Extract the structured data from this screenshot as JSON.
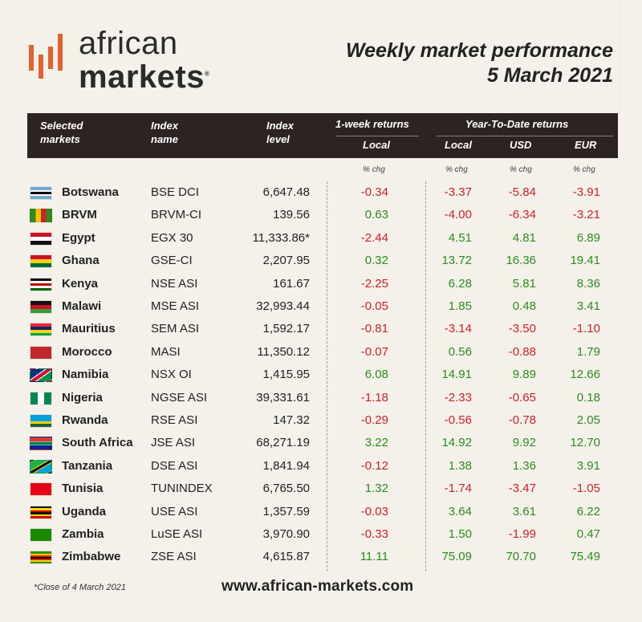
{
  "logo": {
    "line1": "african",
    "line2": "markets",
    "reg": "®"
  },
  "header": {
    "title": "Weekly market performance",
    "date": "5 March 2021"
  },
  "columns": {
    "markets": "Selected markets",
    "index_name": "Index name",
    "index_level": "Index level",
    "week_group": "1-week returns",
    "ytd_group": "Year-To-Date returns",
    "local": "Local",
    "ytd_local": "Local",
    "usd": "USD",
    "eur": "EUR",
    "pct_chg": "% chg"
  },
  "colors": {
    "header_bg": "#2c2322",
    "positive": "#2e8b1f",
    "negative": "#d0202b",
    "logo_orange": "#e2622e",
    "background": "#f3f1e9"
  },
  "chart_data": {
    "type": "table",
    "title": "Weekly market performance",
    "subtitle": "5 March 2021",
    "rows": [
      {
        "country": "Botswana",
        "flag": "botswana-flag",
        "index": "BSE DCI",
        "level": "6,647.48",
        "week_local": "-0.34",
        "ytd_local": "-3.37",
        "ytd_usd": "-5.84",
        "ytd_eur": "-3.91"
      },
      {
        "country": "BRVM",
        "flag": "brvm-flag",
        "index": "BRVM-CI",
        "level": "139.56",
        "week_local": "0.63",
        "ytd_local": "-4.00",
        "ytd_usd": "-6.34",
        "ytd_eur": "-3.21"
      },
      {
        "country": "Egypt",
        "flag": "egypt-flag",
        "index": "EGX 30",
        "level": "11,333.86*",
        "week_local": "-2.44",
        "ytd_local": "4.51",
        "ytd_usd": "4.81",
        "ytd_eur": "6.89"
      },
      {
        "country": "Ghana",
        "flag": "ghana-flag",
        "index": "GSE-CI",
        "level": "2,207.95",
        "week_local": "0.32",
        "ytd_local": "13.72",
        "ytd_usd": "16.36",
        "ytd_eur": "19.41"
      },
      {
        "country": "Kenya",
        "flag": "kenya-flag",
        "index": "NSE ASI",
        "level": "161.67",
        "week_local": "-2.25",
        "ytd_local": "6.28",
        "ytd_usd": "5.81",
        "ytd_eur": "8.36"
      },
      {
        "country": "Malawi",
        "flag": "malawi-flag",
        "index": "MSE ASI",
        "level": "32,993.44",
        "week_local": "-0.05",
        "ytd_local": "1.85",
        "ytd_usd": "0.48",
        "ytd_eur": "3.41"
      },
      {
        "country": "Mauritius",
        "flag": "mauritius-flag",
        "index": "SEM ASI",
        "level": "1,592.17",
        "week_local": "-0.81",
        "ytd_local": "-3.14",
        "ytd_usd": "-3.50",
        "ytd_eur": "-1.10"
      },
      {
        "country": "Morocco",
        "flag": "morocco-flag",
        "index": "MASI",
        "level": "11,350.12",
        "week_local": "-0.07",
        "ytd_local": "0.56",
        "ytd_usd": "-0.88",
        "ytd_eur": "1.79"
      },
      {
        "country": "Namibia",
        "flag": "namibia-flag",
        "index": "NSX OI",
        "level": "1,415.95",
        "week_local": "6.08",
        "ytd_local": "14.91",
        "ytd_usd": "9.89",
        "ytd_eur": "12.66"
      },
      {
        "country": "Nigeria",
        "flag": "nigeria-flag",
        "index": "NGSE ASI",
        "level": "39,331.61",
        "week_local": "-1.18",
        "ytd_local": "-2.33",
        "ytd_usd": "-0.65",
        "ytd_eur": "0.18"
      },
      {
        "country": "Rwanda",
        "flag": "rwanda-flag",
        "index": "RSE ASI",
        "level": "147.32",
        "week_local": "-0.29",
        "ytd_local": "-0.56",
        "ytd_usd": "-0.78",
        "ytd_eur": "2.05"
      },
      {
        "country": "South Africa",
        "flag": "south-africa-flag",
        "index": "JSE ASI",
        "level": "68,271.19",
        "week_local": "3.22",
        "ytd_local": "14.92",
        "ytd_usd": "9.92",
        "ytd_eur": "12.70"
      },
      {
        "country": "Tanzania",
        "flag": "tanzania-flag",
        "index": "DSE ASI",
        "level": "1,841.94",
        "week_local": "-0.12",
        "ytd_local": "1.38",
        "ytd_usd": "1.36",
        "ytd_eur": "3.91"
      },
      {
        "country": "Tunisia",
        "flag": "tunisia-flag",
        "index": "TUNINDEX",
        "level": "6,765.50",
        "week_local": "1.32",
        "ytd_local": "-1.74",
        "ytd_usd": "-3.47",
        "ytd_eur": "-1.05"
      },
      {
        "country": "Uganda",
        "flag": "uganda-flag",
        "index": "USE ASI",
        "level": "1,357.59",
        "week_local": "-0.03",
        "ytd_local": "3.64",
        "ytd_usd": "3.61",
        "ytd_eur": "6.22"
      },
      {
        "country": "Zambia",
        "flag": "zambia-flag",
        "index": "LuSE ASI",
        "level": "3,970.90",
        "week_local": "-0.33",
        "ytd_local": "1.50",
        "ytd_usd": "-1.99",
        "ytd_eur": "0.47"
      },
      {
        "country": "Zimbabwe",
        "flag": "zimbabwe-flag",
        "index": "ZSE ASI",
        "level": "4,615.87",
        "week_local": "11.11",
        "ytd_local": "75.09",
        "ytd_usd": "70.70",
        "ytd_eur": "75.49"
      }
    ]
  },
  "footer": {
    "note": "*Close of 4 March 2021",
    "website": "www.african-markets.com"
  }
}
